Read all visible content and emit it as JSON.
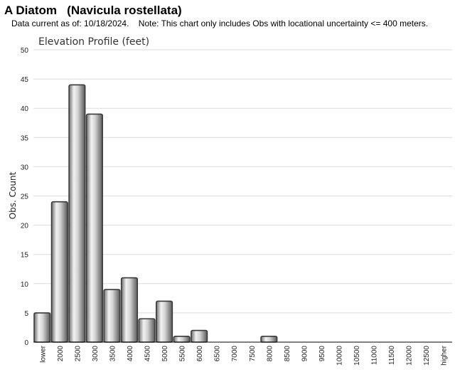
{
  "header": {
    "title": "A Diatom   (Navicula rostellata)",
    "note": "Data current as of: 10/18/2024.    Note: This chart only includes Obs with locational uncertainty <= 400 meters."
  },
  "chart_data": {
    "type": "bar",
    "title": "Elevation Profile (feet)",
    "xlabel": "",
    "ylabel": "Obs. Count",
    "ylim": [
      0,
      50
    ],
    "yticks": [
      0,
      5,
      10,
      15,
      20,
      25,
      30,
      35,
      40,
      45,
      50
    ],
    "grid": true,
    "categories": [
      "lower",
      "2000",
      "2500",
      "3000",
      "3500",
      "4000",
      "4500",
      "5000",
      "5500",
      "6000",
      "6500",
      "7000",
      "7500",
      "8000",
      "8500",
      "9000",
      "9500",
      "10000",
      "10500",
      "11000",
      "11500",
      "12000",
      "12500",
      "higher"
    ],
    "values": [
      5,
      24,
      44,
      39,
      9,
      11,
      4,
      7,
      1,
      2,
      0,
      0,
      0,
      1,
      0,
      0,
      0,
      0,
      0,
      0,
      0,
      0,
      0,
      0
    ]
  }
}
